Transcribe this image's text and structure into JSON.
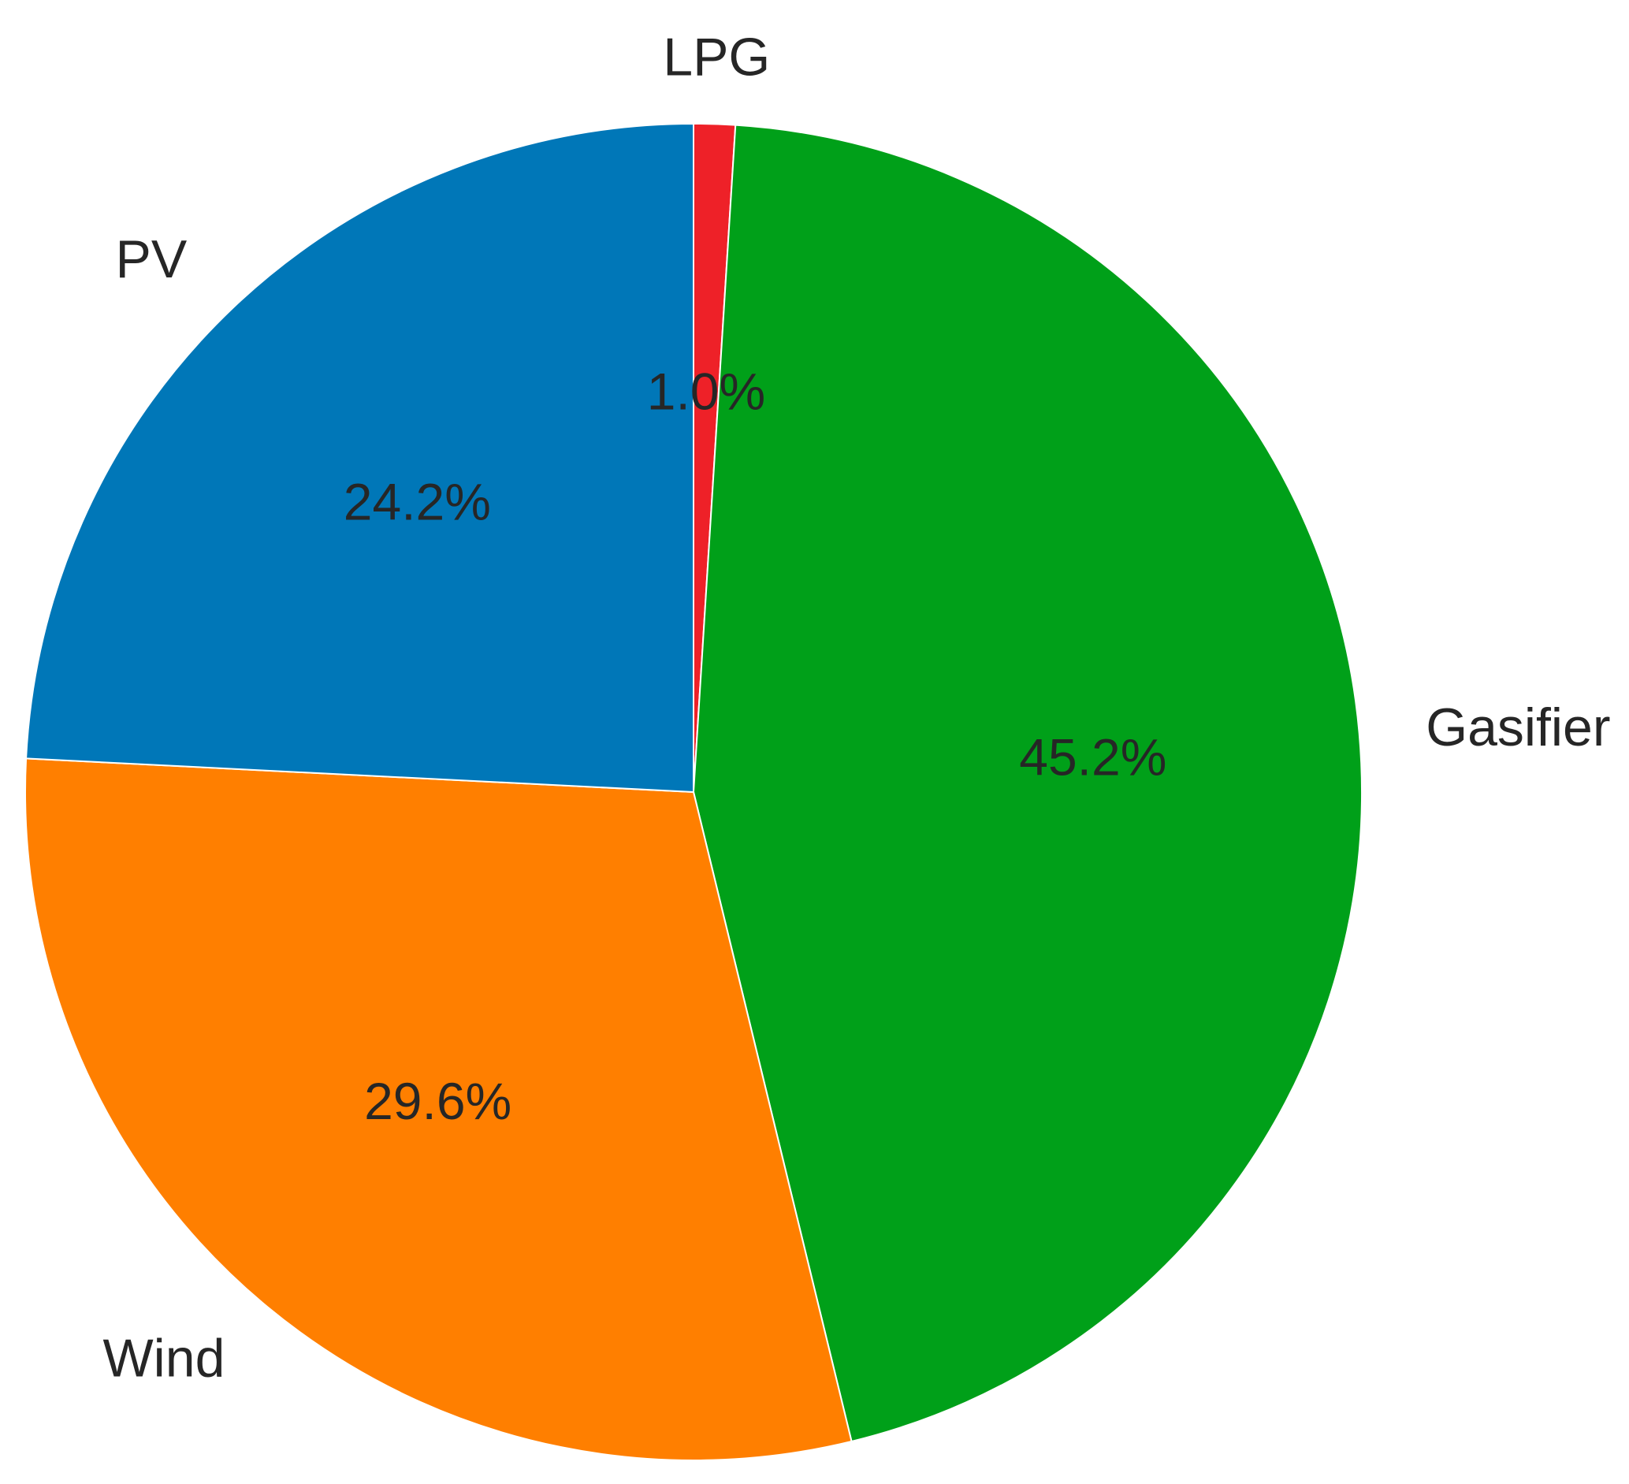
{
  "chart_data": {
    "type": "pie",
    "categories": [
      "LPG",
      "Gasifier",
      "Wind",
      "PV"
    ],
    "values": [
      1.0,
      45.2,
      29.6,
      24.2
    ],
    "value_labels": [
      "1.0%",
      "45.2%",
      "29.6%",
      "24.2%"
    ],
    "colors": [
      "#ee2128",
      "#00a019",
      "#ff7f00",
      "#0077b8"
    ],
    "start_angle_deg": 90,
    "direction": "clockwise",
    "title": "",
    "legend": "none"
  }
}
